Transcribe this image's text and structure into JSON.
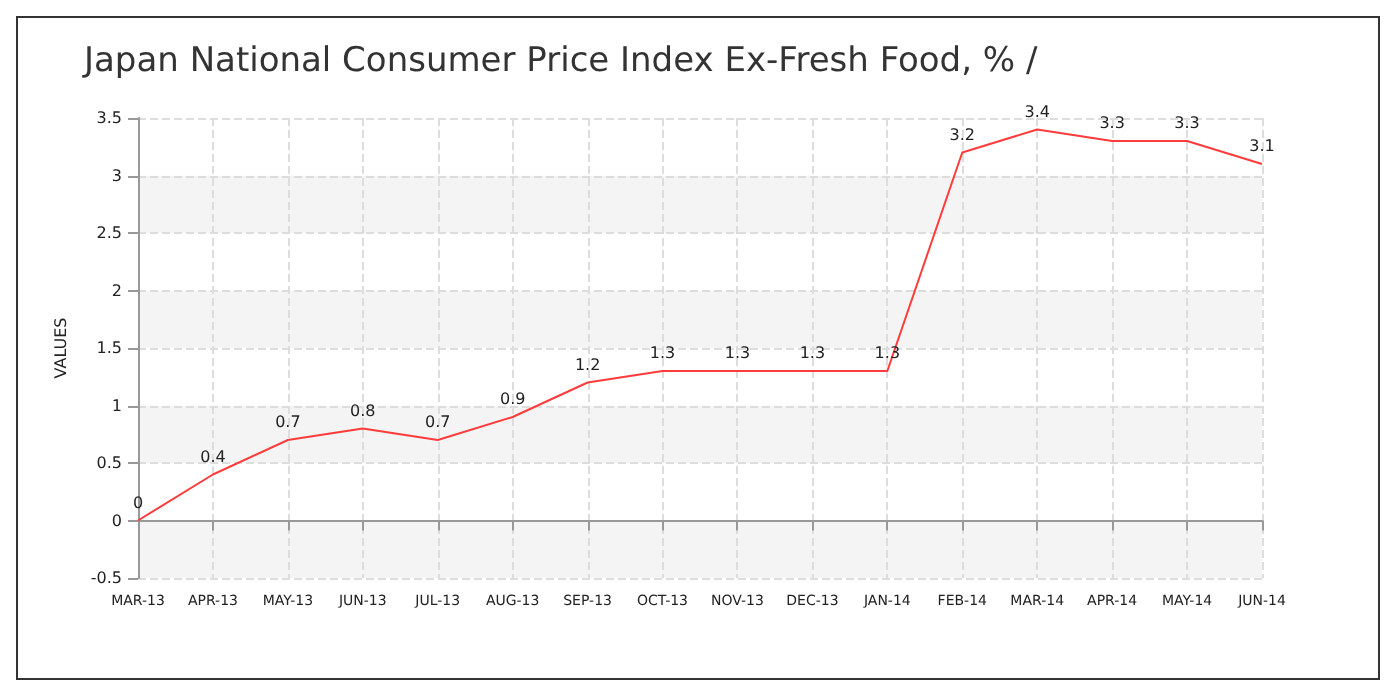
{
  "chart_data": {
    "type": "line",
    "title": "Japan National Consumer Price Index Ex-Fresh Food, % /",
    "ylabel": "VALUES",
    "categories": [
      "MAR-13",
      "APR-13",
      "MAY-13",
      "JUN-13",
      "JUL-13",
      "AUG-13",
      "SEP-13",
      "OCT-13",
      "NOV-13",
      "DEC-13",
      "JAN-14",
      "FEB-14",
      "MAR-14",
      "APR-14",
      "MAY-14",
      "JUN-14"
    ],
    "series": [
      {
        "color": "#ff3b3b",
        "values": [
          0,
          0.4,
          0.7,
          0.8,
          0.7,
          0.9,
          1.2,
          1.3,
          1.3,
          1.3,
          1.3,
          3.2,
          3.4,
          3.3,
          3.3,
          3.1
        ]
      }
    ],
    "ylim": [
      -0.5,
      3.5
    ],
    "yticks": [
      -0.5,
      0,
      0.5,
      1,
      1.5,
      2,
      2.5,
      3,
      3.5
    ],
    "grid": true,
    "data_labels": true,
    "marker": "none"
  }
}
